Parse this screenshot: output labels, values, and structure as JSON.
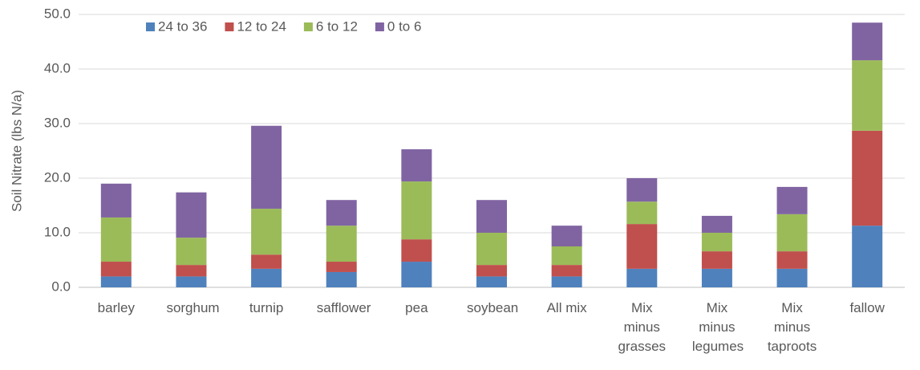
{
  "chart_data": {
    "type": "stacked_bar",
    "y_label": "Soil Nitrate (lbs N/a)",
    "categories": [
      "barley",
      "sorghum",
      "turnip",
      "safflower",
      "pea",
      "soybean",
      "All mix",
      "Mix minus grasses",
      "Mix minus legumes",
      "Mix minus taproots",
      "fallow"
    ],
    "series": [
      {
        "name": "24 to 36",
        "color": "#4f81bd",
        "values": [
          2.0,
          2.0,
          3.4,
          2.8,
          4.7,
          2.0,
          2.0,
          3.4,
          3.4,
          3.4,
          11.3
        ]
      },
      {
        "name": "12 to 24",
        "color": "#c0504d",
        "values": [
          2.7,
          2.1,
          2.6,
          1.9,
          4.1,
          2.1,
          2.1,
          8.2,
          3.2,
          3.2,
          17.4
        ]
      },
      {
        "name": "6 to 12",
        "color": "#9bbb59",
        "values": [
          8.1,
          5.0,
          8.4,
          6.6,
          10.6,
          5.9,
          3.4,
          4.1,
          3.4,
          6.8,
          12.9
        ]
      },
      {
        "name": "0 to 6",
        "color": "#8064a2",
        "values": [
          6.2,
          8.3,
          15.2,
          4.7,
          5.9,
          6.0,
          3.8,
          4.3,
          3.1,
          5.0,
          6.9
        ]
      }
    ],
    "ylim": [
      0,
      50
    ],
    "yticks": [
      {
        "value": 0,
        "label": "0.0"
      },
      {
        "value": 10,
        "label": "10.0"
      },
      {
        "value": 20,
        "label": "20.0"
      },
      {
        "value": 30,
        "label": "30.0"
      },
      {
        "value": 40,
        "label": "40.0"
      },
      {
        "value": 50,
        "label": "50.0"
      }
    ],
    "grid": true,
    "legend": "top"
  }
}
